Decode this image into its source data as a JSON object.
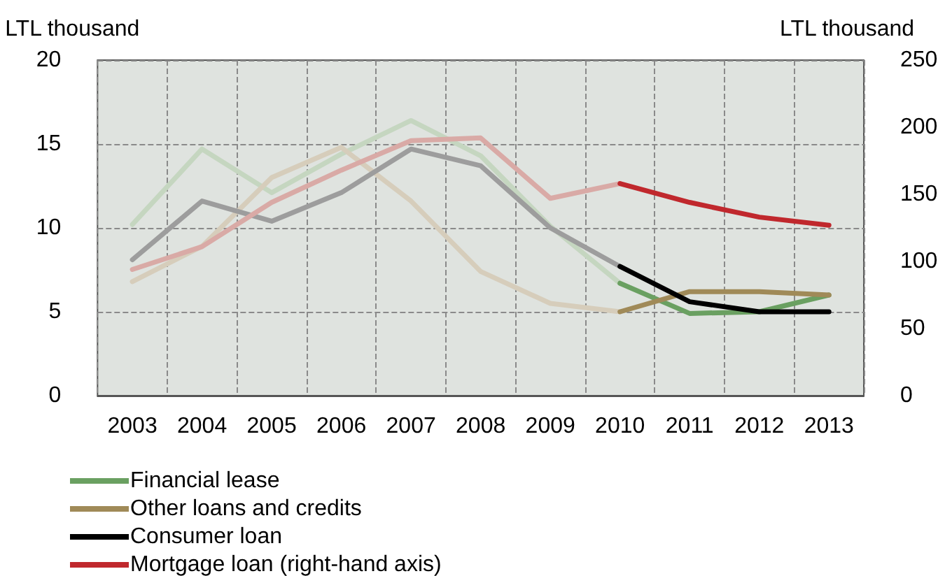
{
  "chart_data": {
    "type": "line",
    "ylabel": "LTL thousand",
    "y2label": "LTL thousand",
    "categories": [
      "2003",
      "2004",
      "2005",
      "2006",
      "2007",
      "2008",
      "2009",
      "2010",
      "2011",
      "2012",
      "2013"
    ],
    "series": [
      {
        "color": "#c5d6c0",
        "values": [
          10.2,
          14.7,
          12.1,
          14.4,
          16.4,
          14.3,
          10.1,
          6.7,
          null,
          null,
          null
        ]
      },
      {
        "color": "#d6cdbb",
        "values": [
          6.8,
          8.9,
          13.0,
          14.8,
          11.6,
          7.4,
          5.5,
          5.0,
          null,
          null,
          null
        ]
      },
      {
        "color": "#9d9d9d",
        "values": [
          8.1,
          11.6,
          10.4,
          12.1,
          14.7,
          13.7,
          10.0,
          7.7,
          null,
          null,
          null
        ]
      },
      {
        "color": "#d9aaa6",
        "axis": "y2",
        "values": [
          94,
          111,
          144,
          168,
          190,
          192,
          147,
          158,
          null,
          null,
          null
        ]
      },
      {
        "name": "Financial lease",
        "color": "#6aa061",
        "values": [
          null,
          null,
          null,
          null,
          null,
          null,
          null,
          6.7,
          4.9,
          5.0,
          6.0
        ]
      },
      {
        "name": "Other loans and credits",
        "color": "#a08a58",
        "values": [
          null,
          null,
          null,
          null,
          null,
          null,
          null,
          5.0,
          6.2,
          6.2,
          6.0
        ]
      },
      {
        "name": "Consumer loan",
        "color": "#000000",
        "values": [
          null,
          null,
          null,
          null,
          null,
          null,
          null,
          7.7,
          5.6,
          5.0,
          5.0
        ]
      },
      {
        "name": "Mortgage loan (right-hand axis)",
        "color": "#c0282d",
        "axis": "y2",
        "values": [
          null,
          null,
          null,
          null,
          null,
          null,
          null,
          158,
          144,
          133,
          127
        ]
      }
    ],
    "ylim": [
      0,
      20
    ],
    "yticks": [
      0,
      5,
      10,
      15,
      20
    ],
    "y2lim": [
      0,
      250
    ],
    "y2ticks": [
      0,
      50,
      100,
      150,
      200,
      250
    ],
    "grid": true,
    "legend": "bottom left",
    "marker": "none",
    "line_style": "solid"
  }
}
